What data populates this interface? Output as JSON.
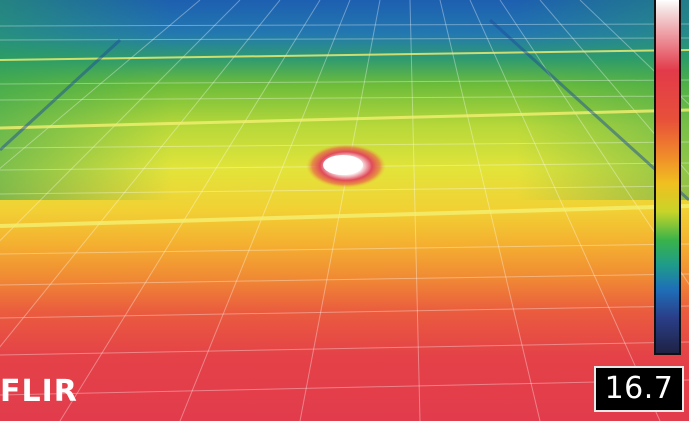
{
  "brand": {
    "logo_text": "FLIR"
  },
  "readout": {
    "temperature": "16.7"
  },
  "palette": {
    "hot": "#e23a4a",
    "warm": "#f0a030",
    "mid": "#e8e030",
    "cool": "#3aa84a",
    "cold": "#1e6fb8",
    "hotspot": "#ffffff"
  }
}
